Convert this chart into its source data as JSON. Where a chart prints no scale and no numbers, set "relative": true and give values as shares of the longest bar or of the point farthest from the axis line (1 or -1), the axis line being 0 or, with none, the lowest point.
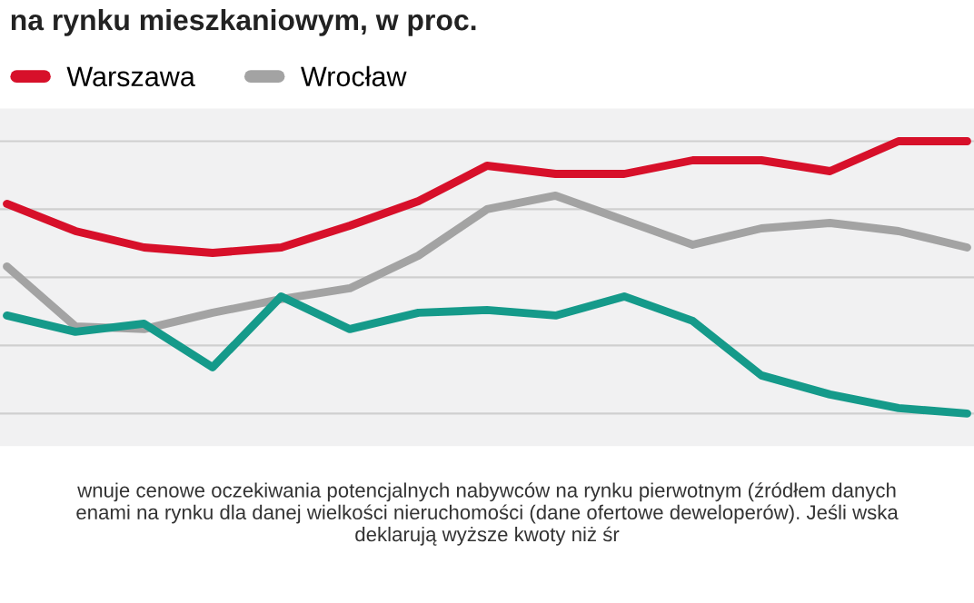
{
  "chart_data": {
    "type": "line",
    "title": "na rynku mieszkaniowym, w proc.",
    "relative": true,
    "grid": "y",
    "legend": "top left",
    "line_style": "solid",
    "marker": "none",
    "categories": [
      null,
      null,
      null,
      null,
      null,
      null,
      null,
      null,
      null,
      null,
      null,
      null,
      null,
      null,
      null
    ],
    "series": [
      {
        "name": "Warszawa",
        "color": "#d7102a",
        "values": [
          0.77,
          0.67,
          0.61,
          0.59,
          0.61,
          0.69,
          0.78,
          0.91,
          0.88,
          0.88,
          0.93,
          0.93,
          0.89,
          1,
          1
        ]
      },
      {
        "name": "Wrocław",
        "color": "#a3a3a3",
        "values": [
          0.54,
          0.32,
          0.31,
          0.37,
          0.42,
          0.46,
          0.58,
          0.75,
          0.8,
          0.71,
          0.62,
          0.68,
          0.7,
          0.67,
          0.61
        ]
      },
      {
        "color": "#159a8a",
        "values": [
          0.36,
          0.3,
          0.33,
          0.17,
          0.43,
          0.31,
          0.37,
          0.38,
          0.36,
          0.43,
          0.34,
          0.14,
          0.07,
          0.02,
          0
        ]
      }
    ],
    "annotations": [
      "wnuje cenowe oczekiwania potencjalnych nabywców na rynku pierwotnym (źródłem danych\nenami na rynku dla danej wielkości nieruchomości (dane ofertowe deweloperów). Jeśli wska\ndeklarują wyższe kwoty niż śr"
    ]
  }
}
